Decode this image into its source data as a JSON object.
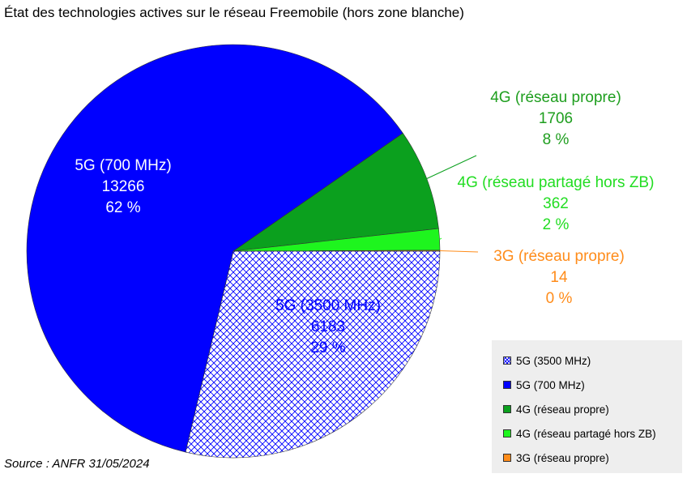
{
  "title": "État des technologies actives sur le réseau Freemobile (hors zone blanche)",
  "source": "Source : ANFR 31/05/2024",
  "chart_data": {
    "type": "pie",
    "title": "État des technologies actives sur le réseau Freemobile (hors zone blanche)",
    "slices": [
      {
        "label": "5G (3500 MHz)",
        "value": 6183,
        "percent": "29 %",
        "color": "#0000ff",
        "pattern": "crosshatch",
        "label_color": "#0000ff"
      },
      {
        "label": "5G (700 MHz)",
        "value": 13266,
        "percent": "62 %",
        "color": "#0000ff",
        "pattern": "solid",
        "label_color": "#ffffff"
      },
      {
        "label": "4G (réseau propre)",
        "value": 1706,
        "percent": "8 %",
        "color": "#0ba01e",
        "pattern": "solid",
        "label_color": "#1e9e1e"
      },
      {
        "label": "4G (réseau partagé hors ZB)",
        "value": 362,
        "percent": "2 %",
        "color": "#1ef51e",
        "pattern": "solid",
        "label_color": "#22dd22"
      },
      {
        "label": "3G (réseau propre)",
        "value": 14,
        "percent": "0 %",
        "color": "#ff8c1a",
        "pattern": "solid",
        "label_color": "#ff8c1a"
      }
    ],
    "legend": {
      "position": "bottom-right",
      "items": [
        "5G (3500 MHz)",
        "5G (700 MHz)",
        "4G (réseau propre)",
        "4G (réseau partagé hors ZB)",
        "3G (réseau propre)"
      ]
    }
  }
}
